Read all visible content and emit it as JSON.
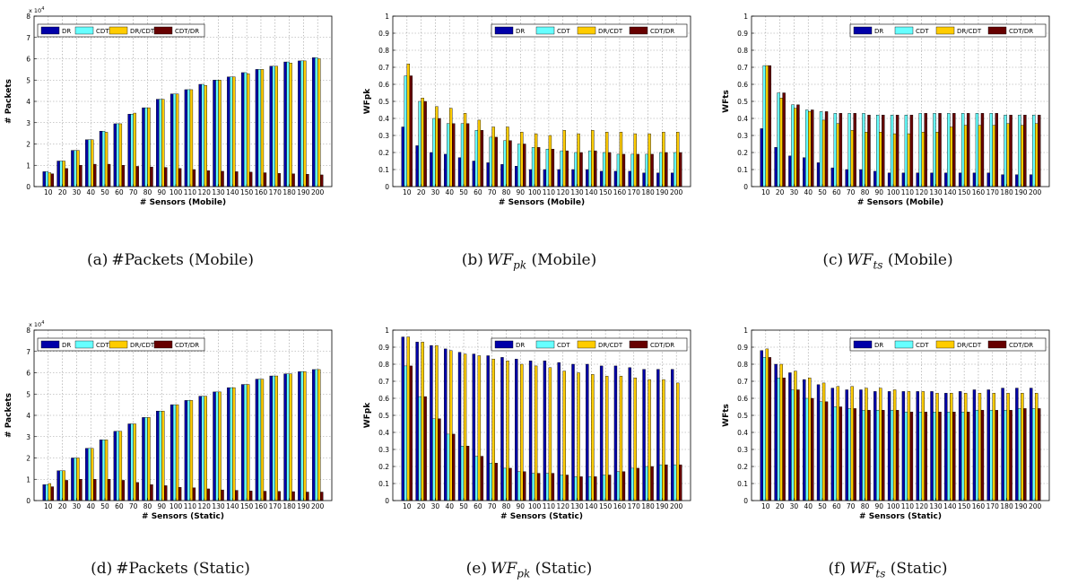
{
  "legend": [
    "DR",
    "CDT",
    "DR/CDT",
    "CDT/DR"
  ],
  "colors": {
    "DR": "#0000a8",
    "CDT": "#66ffff",
    "DR/CDT": "#ffcc00",
    "CDT/DR": "#660000"
  },
  "categories": [
    "10",
    "20",
    "30",
    "40",
    "50",
    "60",
    "70",
    "80",
    "90",
    "100",
    "110",
    "120",
    "130",
    "140",
    "150",
    "160",
    "170",
    "180",
    "190",
    "200"
  ],
  "captions": [
    {
      "id": "(a)",
      "text": "#Packets",
      "math": "",
      "sub": "",
      "suffix": "(Mobile)"
    },
    {
      "id": "(b)",
      "text": "",
      "math": "WF",
      "sub": "pk",
      "suffix": "(Mobile)"
    },
    {
      "id": "(c)",
      "text": "",
      "math": "WF",
      "sub": "ts",
      "suffix": "(Mobile)"
    },
    {
      "id": "(d)",
      "text": "#Packets",
      "math": "",
      "sub": "",
      "suffix": "(Static)"
    },
    {
      "id": "(e)",
      "text": "",
      "math": "WF",
      "sub": "pk",
      "suffix": "(Static)"
    },
    {
      "id": "(f)",
      "text": "",
      "math": "WF",
      "sub": "ts",
      "suffix": "(Static)"
    }
  ],
  "chart_data": [
    {
      "type": "bar",
      "panel": "a",
      "xlabel": "# Sensors (Mobile)",
      "ylabel": "# Packets",
      "multiplier_label": "x 10",
      "multiplier_exp": "4",
      "ylim": [
        0,
        8
      ],
      "yticks": [
        "0",
        "1",
        "2",
        "3",
        "4",
        "5",
        "6",
        "7",
        "8"
      ],
      "legend_position": "top-left",
      "series": [
        {
          "name": "DR",
          "values": [
            0.7,
            1.2,
            1.7,
            2.2,
            2.6,
            2.95,
            3.4,
            3.7,
            4.1,
            4.35,
            4.55,
            4.8,
            5.0,
            5.15,
            5.35,
            5.5,
            5.65,
            5.85,
            5.9,
            6.05
          ]
        },
        {
          "name": "CDT",
          "values": [
            0.7,
            1.2,
            1.7,
            2.2,
            2.6,
            2.95,
            3.4,
            3.7,
            4.1,
            4.35,
            4.55,
            4.8,
            5.0,
            5.15,
            5.35,
            5.5,
            5.65,
            5.85,
            5.9,
            6.05
          ]
        },
        {
          "name": "DR/CDT",
          "values": [
            0.65,
            1.2,
            1.7,
            2.2,
            2.55,
            2.95,
            3.45,
            3.7,
            4.1,
            4.35,
            4.55,
            4.75,
            5.0,
            5.15,
            5.3,
            5.5,
            5.65,
            5.8,
            5.9,
            6.0
          ]
        },
        {
          "name": "CDT/DR",
          "values": [
            0.6,
            0.85,
            1.0,
            1.05,
            1.05,
            1.0,
            0.95,
            0.92,
            0.9,
            0.85,
            0.8,
            0.75,
            0.72,
            0.7,
            0.68,
            0.65,
            0.62,
            0.6,
            0.58,
            0.55
          ]
        }
      ]
    },
    {
      "type": "bar",
      "panel": "b",
      "xlabel": "# Sensors (Mobile)",
      "ylabel": "WFpk",
      "ylim": [
        0,
        1
      ],
      "yticks": [
        "0",
        "0.1",
        "0.2",
        "0.3",
        "0.4",
        "0.5",
        "0.6",
        "0.7",
        "0.8",
        "0.9",
        "1"
      ],
      "legend_position": "top-right",
      "series": [
        {
          "name": "DR",
          "values": [
            0.35,
            0.24,
            0.2,
            0.19,
            0.17,
            0.15,
            0.14,
            0.13,
            0.12,
            0.1,
            0.1,
            0.1,
            0.1,
            0.1,
            0.09,
            0.09,
            0.09,
            0.08,
            0.08,
            0.08
          ]
        },
        {
          "name": "CDT",
          "values": [
            0.65,
            0.5,
            0.4,
            0.37,
            0.37,
            0.33,
            0.29,
            0.27,
            0.25,
            0.23,
            0.22,
            0.21,
            0.2,
            0.21,
            0.2,
            0.19,
            0.19,
            0.19,
            0.2,
            0.2
          ]
        },
        {
          "name": "DR/CDT",
          "values": [
            0.72,
            0.52,
            0.47,
            0.46,
            0.43,
            0.39,
            0.35,
            0.35,
            0.32,
            0.31,
            0.3,
            0.33,
            0.31,
            0.33,
            0.32,
            0.32,
            0.31,
            0.31,
            0.32,
            0.32
          ]
        },
        {
          "name": "CDT/DR",
          "values": [
            0.65,
            0.5,
            0.4,
            0.37,
            0.37,
            0.33,
            0.29,
            0.27,
            0.25,
            0.23,
            0.22,
            0.21,
            0.2,
            0.21,
            0.2,
            0.19,
            0.19,
            0.19,
            0.2,
            0.2
          ]
        }
      ]
    },
    {
      "type": "bar",
      "panel": "c",
      "xlabel": "# Sensors (Mobile)",
      "ylabel": "WFts",
      "ylim": [
        0,
        1
      ],
      "yticks": [
        "0",
        "0.1",
        "0.2",
        "0.3",
        "0.4",
        "0.5",
        "0.6",
        "0.7",
        "0.8",
        "0.9",
        "1"
      ],
      "legend_position": "top-right",
      "series": [
        {
          "name": "DR",
          "values": [
            0.34,
            0.23,
            0.18,
            0.17,
            0.14,
            0.11,
            0.1,
            0.1,
            0.09,
            0.08,
            0.08,
            0.08,
            0.08,
            0.08,
            0.08,
            0.08,
            0.08,
            0.07,
            0.07,
            0.07
          ]
        },
        {
          "name": "CDT",
          "values": [
            0.71,
            0.55,
            0.48,
            0.45,
            0.44,
            0.43,
            0.43,
            0.43,
            0.42,
            0.42,
            0.42,
            0.43,
            0.43,
            0.43,
            0.43,
            0.43,
            0.43,
            0.42,
            0.42,
            0.42
          ]
        },
        {
          "name": "DR/CDT",
          "values": [
            0.71,
            0.52,
            0.46,
            0.44,
            0.39,
            0.37,
            0.33,
            0.32,
            0.32,
            0.31,
            0.31,
            0.32,
            0.32,
            0.35,
            0.36,
            0.36,
            0.36,
            0.37,
            0.36,
            0.37
          ]
        },
        {
          "name": "CDT/DR",
          "values": [
            0.71,
            0.55,
            0.48,
            0.45,
            0.44,
            0.43,
            0.43,
            0.42,
            0.42,
            0.42,
            0.42,
            0.43,
            0.43,
            0.43,
            0.43,
            0.43,
            0.43,
            0.42,
            0.42,
            0.42
          ]
        }
      ]
    },
    {
      "type": "bar",
      "panel": "d",
      "xlabel": "# Sensors (Static)",
      "ylabel": "# Packets",
      "multiplier_label": "x 10",
      "multiplier_exp": "4",
      "ylim": [
        0,
        8
      ],
      "yticks": [
        "0",
        "1",
        "2",
        "3",
        "4",
        "5",
        "6",
        "7",
        "8"
      ],
      "legend_position": "top-left",
      "series": [
        {
          "name": "DR",
          "values": [
            0.75,
            1.4,
            2.0,
            2.45,
            2.85,
            3.25,
            3.6,
            3.9,
            4.2,
            4.5,
            4.7,
            4.9,
            5.1,
            5.3,
            5.45,
            5.7,
            5.85,
            5.95,
            6.05,
            6.15
          ]
        },
        {
          "name": "CDT",
          "values": [
            0.75,
            1.4,
            2.0,
            2.45,
            2.85,
            3.25,
            3.6,
            3.9,
            4.2,
            4.5,
            4.7,
            4.9,
            5.1,
            5.3,
            5.45,
            5.7,
            5.85,
            5.95,
            6.05,
            6.15
          ]
        },
        {
          "name": "DR/CDT",
          "values": [
            0.8,
            1.4,
            2.0,
            2.45,
            2.85,
            3.25,
            3.6,
            3.9,
            4.2,
            4.5,
            4.7,
            4.9,
            5.1,
            5.3,
            5.45,
            5.7,
            5.85,
            5.95,
            6.05,
            6.15
          ]
        },
        {
          "name": "CDT/DR",
          "values": [
            0.65,
            0.95,
            1.0,
            1.0,
            1.0,
            0.95,
            0.85,
            0.75,
            0.7,
            0.62,
            0.6,
            0.55,
            0.5,
            0.48,
            0.45,
            0.44,
            0.43,
            0.42,
            0.4,
            0.4
          ]
        }
      ]
    },
    {
      "type": "bar",
      "panel": "e",
      "xlabel": "# Sensors (Static)",
      "ylabel": "WFpk",
      "ylim": [
        0,
        1
      ],
      "yticks": [
        "0",
        "0.1",
        "0.2",
        "0.3",
        "0.4",
        "0.5",
        "0.6",
        "0.7",
        "0.8",
        "0.9",
        "1"
      ],
      "legend_position": "top-right",
      "series": [
        {
          "name": "DR",
          "values": [
            0.96,
            0.93,
            0.91,
            0.89,
            0.87,
            0.86,
            0.85,
            0.84,
            0.83,
            0.82,
            0.82,
            0.81,
            0.8,
            0.8,
            0.79,
            0.79,
            0.78,
            0.77,
            0.77,
            0.77
          ]
        },
        {
          "name": "CDT",
          "values": [
            0.79,
            0.61,
            0.48,
            0.39,
            0.32,
            0.26,
            0.22,
            0.19,
            0.17,
            0.16,
            0.16,
            0.15,
            0.14,
            0.14,
            0.15,
            0.17,
            0.19,
            0.2,
            0.21,
            0.21
          ]
        },
        {
          "name": "DR/CDT",
          "values": [
            0.96,
            0.93,
            0.91,
            0.88,
            0.86,
            0.85,
            0.83,
            0.82,
            0.8,
            0.79,
            0.78,
            0.76,
            0.75,
            0.74,
            0.73,
            0.73,
            0.72,
            0.71,
            0.71,
            0.69
          ]
        },
        {
          "name": "CDT/DR",
          "values": [
            0.79,
            0.61,
            0.48,
            0.39,
            0.32,
            0.26,
            0.22,
            0.19,
            0.17,
            0.16,
            0.16,
            0.15,
            0.14,
            0.14,
            0.15,
            0.17,
            0.19,
            0.2,
            0.21,
            0.21
          ]
        }
      ]
    },
    {
      "type": "bar",
      "panel": "f",
      "xlabel": "# Sensors (Static)",
      "ylabel": "WFts",
      "ylim": [
        0,
        1
      ],
      "yticks": [
        "0",
        "0.1",
        "0.2",
        "0.3",
        "0.4",
        "0.5",
        "0.6",
        "0.7",
        "0.8",
        "0.9",
        "1"
      ],
      "legend_position": "top-right",
      "series": [
        {
          "name": "DR",
          "values": [
            0.88,
            0.8,
            0.75,
            0.71,
            0.68,
            0.66,
            0.65,
            0.65,
            0.64,
            0.64,
            0.64,
            0.64,
            0.64,
            0.63,
            0.64,
            0.65,
            0.65,
            0.66,
            0.66,
            0.66
          ]
        },
        {
          "name": "CDT",
          "values": [
            0.84,
            0.72,
            0.65,
            0.6,
            0.58,
            0.55,
            0.54,
            0.53,
            0.53,
            0.53,
            0.52,
            0.52,
            0.52,
            0.52,
            0.52,
            0.53,
            0.53,
            0.53,
            0.54,
            0.54
          ]
        },
        {
          "name": "DR/CDT",
          "values": [
            0.89,
            0.8,
            0.76,
            0.72,
            0.69,
            0.67,
            0.67,
            0.66,
            0.66,
            0.65,
            0.64,
            0.64,
            0.63,
            0.63,
            0.63,
            0.63,
            0.63,
            0.63,
            0.63,
            0.63
          ]
        },
        {
          "name": "CDT/DR",
          "values": [
            0.84,
            0.72,
            0.65,
            0.6,
            0.58,
            0.55,
            0.54,
            0.53,
            0.53,
            0.53,
            0.52,
            0.52,
            0.52,
            0.52,
            0.52,
            0.53,
            0.53,
            0.53,
            0.54,
            0.54
          ]
        }
      ]
    }
  ]
}
